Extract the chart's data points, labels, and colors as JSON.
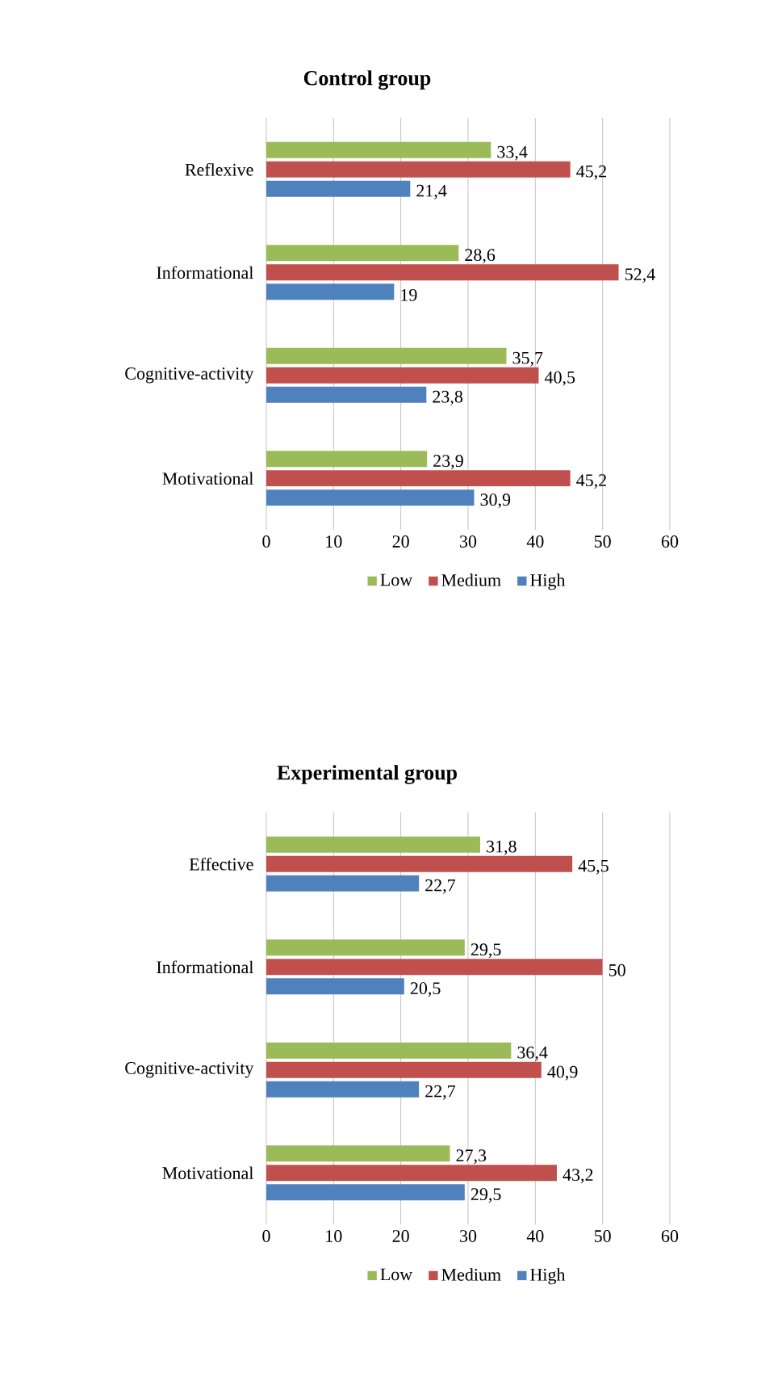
{
  "chart_data": [
    {
      "type": "bar",
      "orientation": "horizontal",
      "title": "Control group",
      "categories": [
        "Reflexive",
        "Informational",
        "Cognitive-activity",
        "Motivational"
      ],
      "xlim": [
        0,
        60
      ],
      "xticks": [
        0,
        10,
        20,
        30,
        40,
        50,
        60
      ],
      "grid": "x",
      "legend": "bottom",
      "series": [
        {
          "name": "Low",
          "color": "#9bbb59",
          "values": [
            33.4,
            28.6,
            35.7,
            23.9
          ],
          "value_labels": [
            "33,4",
            "28,6",
            "35,7",
            "23,9"
          ]
        },
        {
          "name": "Medium",
          "color": "#c0504d",
          "values": [
            45.2,
            52.4,
            40.5,
            45.2
          ],
          "value_labels": [
            "45,2",
            "52,4",
            "40,5",
            "45,2"
          ]
        },
        {
          "name": "High",
          "color": "#4f81bd",
          "values": [
            21.4,
            19,
            23.8,
            30.9
          ],
          "value_labels": [
            "21,4",
            "19",
            "23,8",
            "30,9"
          ]
        }
      ]
    },
    {
      "type": "bar",
      "orientation": "horizontal",
      "title": "Experimental group",
      "categories": [
        "Effective",
        "Informational",
        "Cognitive-activity",
        "Motivational"
      ],
      "xlim": [
        0,
        60
      ],
      "xticks": [
        0,
        10,
        20,
        30,
        40,
        50,
        60
      ],
      "grid": "x",
      "legend": "bottom",
      "series": [
        {
          "name": "Low",
          "color": "#9bbb59",
          "values": [
            31.8,
            29.5,
            36.4,
            27.3
          ],
          "value_labels": [
            "31,8",
            "29,5",
            "36,4",
            "27,3"
          ]
        },
        {
          "name": "Medium",
          "color": "#c0504d",
          "values": [
            45.5,
            50,
            40.9,
            43.2
          ],
          "value_labels": [
            "45,5",
            "50",
            "40,9",
            "43,2"
          ]
        },
        {
          "name": "High",
          "color": "#4f81bd",
          "values": [
            22.7,
            20.5,
            22.7,
            29.5
          ],
          "value_labels": [
            "22,7",
            "20,5",
            "22,7",
            "29,5"
          ]
        }
      ]
    }
  ]
}
